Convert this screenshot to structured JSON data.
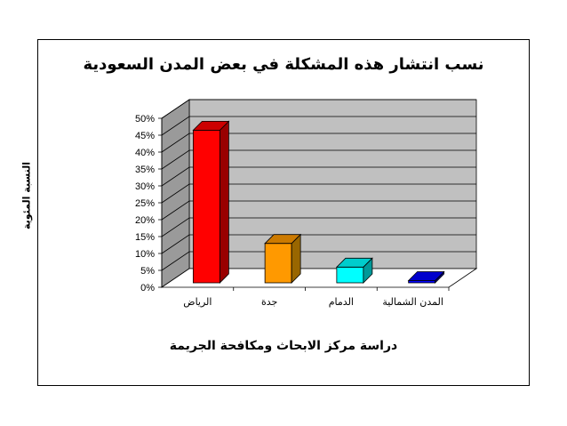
{
  "chart_data": {
    "type": "bar",
    "title": "نسب انتشار هذه المشكلة في بعض المدن السعودية",
    "xlabel": "دراسة مركز الابحاث ومكافحة الجريمة",
    "ylabel": "النسبة المئوية",
    "categories": [
      "الرياض",
      "جدة",
      "الدمام",
      "المدن الشمالية"
    ],
    "values": [
      47,
      13.5,
      6.5,
      2.5
    ],
    "unit": "%",
    "ylim": [
      0,
      50
    ],
    "yticks": [
      "0%",
      "5%",
      "10%",
      "15%",
      "20%",
      "25%",
      "30%",
      "35%",
      "40%",
      "45%",
      "50%"
    ],
    "grid": true,
    "style": "3d-bars",
    "colors": [
      {
        "front": "#ff0000",
        "side": "#990000",
        "top": "#cc0000"
      },
      {
        "front": "#ff9900",
        "side": "#996600",
        "top": "#cc7a00"
      },
      {
        "front": "#00ffff",
        "side": "#009999",
        "top": "#00cccc"
      },
      {
        "front": "#0000ff",
        "side": "#000080",
        "top": "#0000cc"
      }
    ],
    "wall_color": "#c0c0c0",
    "floor_color": "#ffffff"
  }
}
